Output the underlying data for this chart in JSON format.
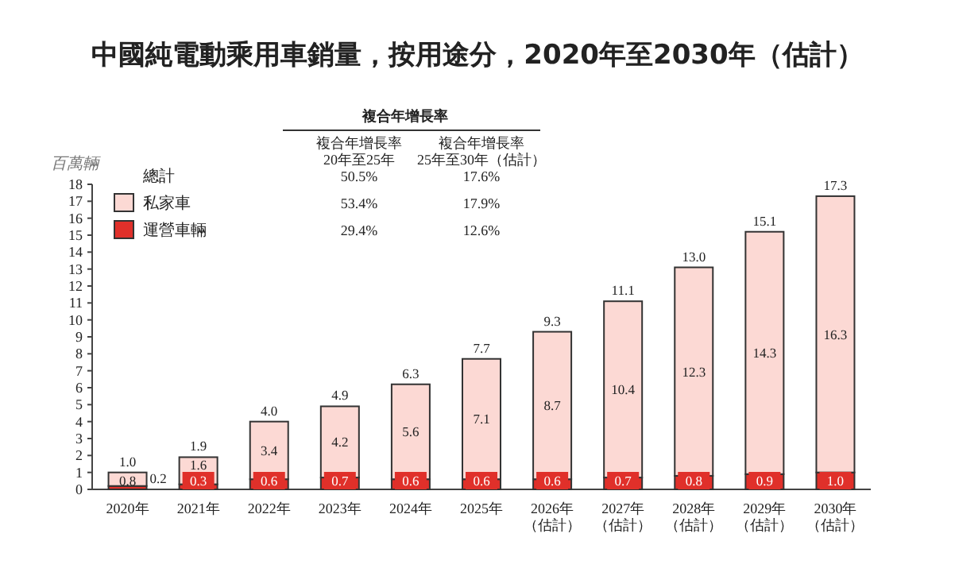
{
  "chart_data": {
    "type": "bar",
    "title": "中國純電動乘用車銷量，按用途分，2020年至2030年（估計）",
    "ylabel": "百萬輛",
    "categories": [
      "2020年",
      "2021年",
      "2022年",
      "2023年",
      "2024年",
      "2025年",
      "2026年（估計）",
      "2027年（估計）",
      "2028年（估計）",
      "2029年（估計）",
      "2030年（估計）"
    ],
    "series": [
      {
        "name": "運營車輛",
        "color": "#e0302a",
        "values": [
          0.2,
          0.3,
          0.6,
          0.7,
          0.6,
          0.6,
          0.6,
          0.7,
          0.8,
          0.9,
          1.0
        ],
        "value_labels": [
          "0.2",
          "0.3",
          "0.6",
          "0.7",
          "0.6",
          "0.6",
          "0.6",
          "0.7",
          "0.8",
          "0.9",
          "1.0"
        ]
      },
      {
        "name": "私家車",
        "color": "#fcd9d4",
        "values": [
          0.8,
          1.6,
          3.4,
          4.2,
          5.6,
          7.1,
          8.7,
          10.4,
          12.3,
          14.3,
          16.3
        ],
        "value_labels": [
          "0.8",
          "1.6",
          "3.4",
          "4.2",
          "5.6",
          "7.1",
          "8.7",
          "10.4",
          "12.3",
          "14.3",
          "16.3"
        ]
      }
    ],
    "stacked": true,
    "totals": [
      "1.0",
      "1.9",
      "4.0",
      "4.9",
      "6.3",
      "7.7",
      "9.3",
      "11.1",
      "13.0",
      "15.1",
      "17.3"
    ],
    "ylim": [
      0,
      18
    ],
    "yticks": [
      0,
      1,
      2,
      3,
      4,
      5,
      6,
      7,
      8,
      9,
      10,
      11,
      12,
      13,
      14,
      15,
      16,
      17,
      18
    ],
    "grid": false,
    "legend": "top left",
    "annotations": [
      "複合年增長率",
      "複合年增長率\n20年至25年",
      "複合年增長率\n25年至30年（估計）",
      "總計",
      "50.5%",
      "17.6%",
      "53.4%",
      "17.9%",
      "29.4%",
      "12.6%"
    ]
  }
}
